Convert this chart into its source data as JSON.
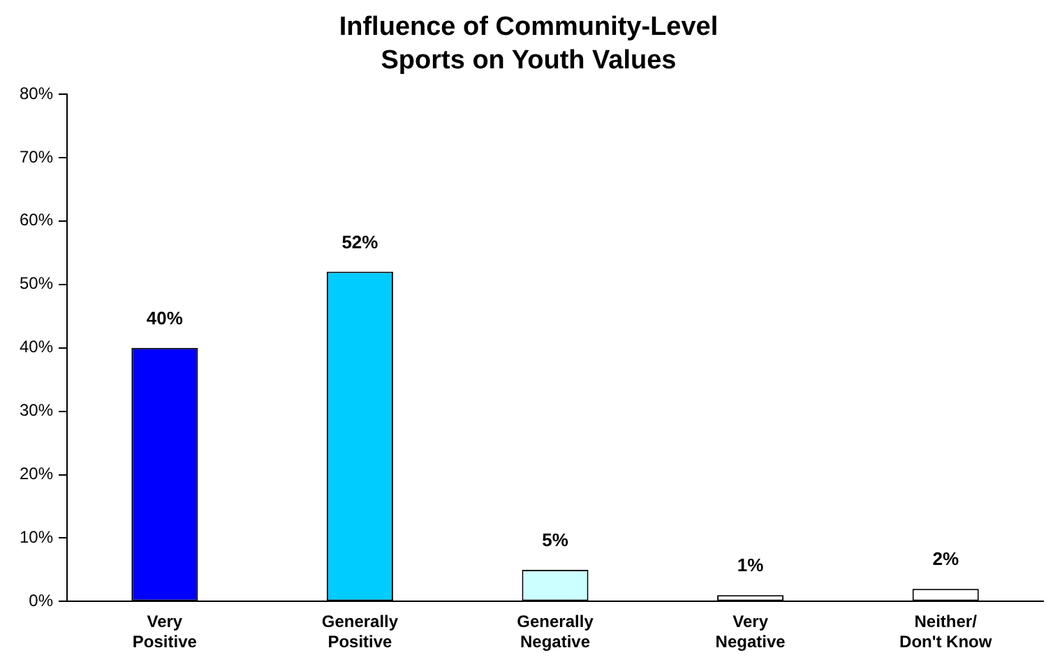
{
  "chart_data": {
    "type": "bar",
    "title": "Influence of Community-Level Sports on Youth Values",
    "categories": [
      "Very Positive",
      "Generally Positive",
      "Generally Negative",
      "Very Negative",
      "Neither/ Don't Know"
    ],
    "values": [
      40,
      52,
      5,
      1,
      2
    ],
    "colors": [
      "#0000ff",
      "#00ccff",
      "#ccffff",
      "#ffffff",
      "#ffffff"
    ],
    "value_labels": [
      "40%",
      "52%",
      "5%",
      "1%",
      "2%"
    ],
    "ylim": [
      0,
      80
    ],
    "yticks": [
      {
        "value": 0,
        "label": "0%"
      },
      {
        "value": 10,
        "label": "10%"
      },
      {
        "value": 20,
        "label": "20%"
      },
      {
        "value": 30,
        "label": "30%"
      },
      {
        "value": 40,
        "label": "40%"
      },
      {
        "value": 50,
        "label": "50%"
      },
      {
        "value": 60,
        "label": "60%"
      },
      {
        "value": 70,
        "label": "70%"
      },
      {
        "value": 80,
        "label": "80%"
      }
    ],
    "grid": false,
    "legend": false
  }
}
